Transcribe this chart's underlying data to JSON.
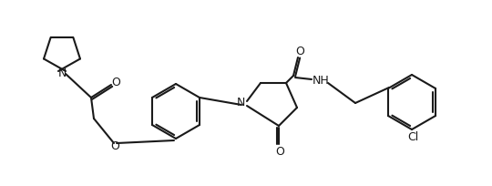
{
  "background_color": "#ffffff",
  "line_color": "#1a1a1a",
  "line_width": 1.5,
  "figsize": [
    5.4,
    2.04
  ],
  "dpi": 100,
  "atoms": {
    "N_pyr": "N",
    "O_co1": "O",
    "O_ether": "O",
    "N_central": "N",
    "O_co2": "O",
    "O_amide": "O",
    "NH": "NH",
    "Cl": "Cl"
  }
}
